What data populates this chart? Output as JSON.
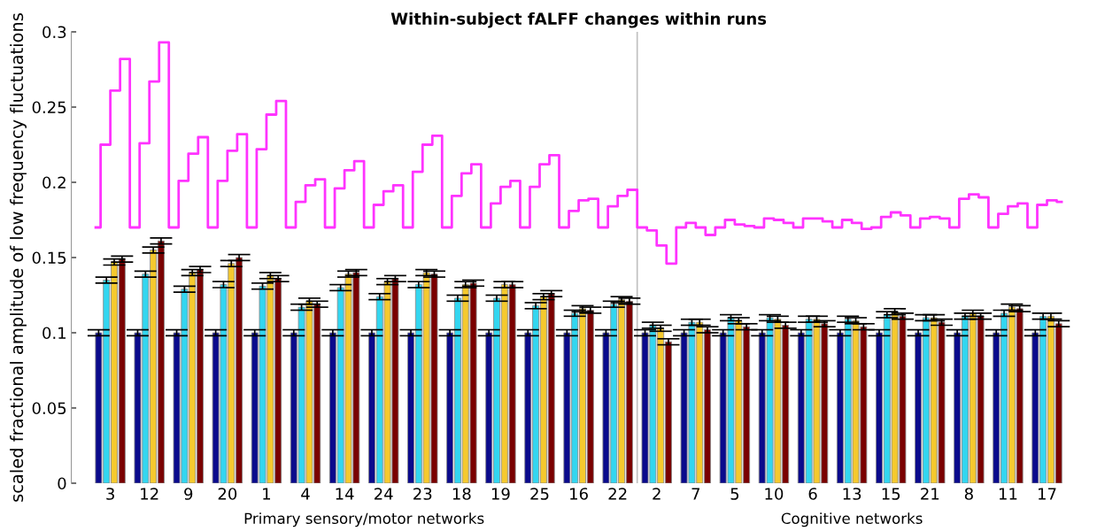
{
  "chart_data": [
    {
      "type": "bar",
      "title": "Within-subject fALFF changes within runs",
      "ylabel": "scaled fractional amplitude of low frequency fluctuations",
      "categories": [
        "3",
        "12",
        "9",
        "20",
        "1",
        "4",
        "14",
        "24",
        "23",
        "18",
        "19",
        "25",
        "16",
        "22",
        "2",
        "7",
        "5",
        "10",
        "6",
        "13",
        "15",
        "21",
        "8",
        "11",
        "17"
      ],
      "ylim": [
        0,
        0.3
      ],
      "yticks": [
        0,
        0.05,
        0.1,
        0.15,
        0.2,
        0.25,
        0.3
      ],
      "series": [
        {
          "color": "#0a0a8c",
          "values": [
            0.1,
            0.1,
            0.1,
            0.1,
            0.1,
            0.1,
            0.1,
            0.1,
            0.1,
            0.1,
            0.1,
            0.1,
            0.1,
            0.1,
            0.1,
            0.1,
            0.1,
            0.1,
            0.1,
            0.1,
            0.1,
            0.1,
            0.1,
            0.1,
            0.1
          ],
          "errors": [
            0.002,
            0.002,
            0.002,
            0.002,
            0.002,
            0.002,
            0.002,
            0.002,
            0.002,
            0.002,
            0.002,
            0.002,
            0.002,
            0.002,
            0.002,
            0.002,
            0.002,
            0.002,
            0.002,
            0.002,
            0.002,
            0.002,
            0.002,
            0.002,
            0.002
          ]
        },
        {
          "color": "#33d6f0",
          "values": [
            0.135,
            0.139,
            0.129,
            0.132,
            0.131,
            0.117,
            0.13,
            0.124,
            0.132,
            0.123,
            0.123,
            0.118,
            0.113,
            0.119,
            0.105,
            0.107,
            0.11,
            0.11,
            0.109,
            0.109,
            0.112,
            0.11,
            0.111,
            0.113,
            0.111
          ],
          "errors": [
            0.002,
            0.002,
            0.002,
            0.002,
            0.002,
            0.002,
            0.002,
            0.002,
            0.002,
            0.002,
            0.002,
            0.002,
            0.002,
            0.002,
            0.002,
            0.002,
            0.002,
            0.002,
            0.002,
            0.002,
            0.002,
            0.002,
            0.002,
            0.002,
            0.002
          ]
        },
        {
          "color": "#f5c92e",
          "values": [
            0.147,
            0.155,
            0.14,
            0.146,
            0.138,
            0.121,
            0.139,
            0.134,
            0.14,
            0.132,
            0.132,
            0.124,
            0.116,
            0.122,
            0.103,
            0.107,
            0.108,
            0.109,
            0.109,
            0.108,
            0.114,
            0.11,
            0.113,
            0.117,
            0.111
          ],
          "errors": [
            0.002,
            0.002,
            0.002,
            0.002,
            0.002,
            0.002,
            0.002,
            0.002,
            0.002,
            0.002,
            0.002,
            0.002,
            0.002,
            0.002,
            0.002,
            0.002,
            0.002,
            0.002,
            0.002,
            0.002,
            0.002,
            0.002,
            0.002,
            0.002,
            0.002
          ]
        },
        {
          "color": "#7a0000",
          "values": [
            0.149,
            0.161,
            0.142,
            0.15,
            0.136,
            0.119,
            0.14,
            0.136,
            0.139,
            0.133,
            0.132,
            0.126,
            0.115,
            0.121,
            0.094,
            0.102,
            0.104,
            0.105,
            0.106,
            0.104,
            0.111,
            0.107,
            0.111,
            0.116,
            0.106
          ],
          "errors": [
            0.002,
            0.002,
            0.002,
            0.002,
            0.002,
            0.002,
            0.002,
            0.002,
            0.002,
            0.002,
            0.002,
            0.002,
            0.002,
            0.002,
            0.002,
            0.002,
            0.002,
            0.002,
            0.002,
            0.002,
            0.002,
            0.002,
            0.002,
            0.002,
            0.002
          ]
        }
      ],
      "annotations": [
        "Primary sensory/motor networks",
        "Cognitive networks"
      ]
    },
    {
      "type": "step",
      "categories": [
        null,
        null,
        null,
        null,
        null,
        null,
        null,
        null,
        null,
        null,
        null,
        null,
        null,
        null,
        null,
        null,
        null,
        null,
        null,
        null,
        null,
        null,
        null,
        null,
        null,
        null,
        null,
        null,
        null,
        null,
        null,
        null,
        null,
        null,
        null,
        null,
        null,
        null,
        null,
        null,
        null,
        null,
        null,
        null,
        null,
        null,
        null,
        null,
        null,
        null,
        null,
        null,
        null,
        null,
        null,
        null,
        null,
        null,
        null,
        null,
        null,
        null,
        null,
        null,
        null,
        null,
        null,
        null,
        null,
        null,
        null,
        null,
        null,
        null,
        null,
        null,
        null,
        null,
        null,
        null,
        null,
        null,
        null,
        null,
        null,
        null,
        null,
        null,
        null,
        null,
        null,
        null,
        null,
        null,
        null,
        null,
        null,
        null,
        null,
        null
      ],
      "ylim": [
        0,
        0.3
      ],
      "tick_labels": false,
      "series": [
        {
          "color": "#ff33ff",
          "values": [
            0.17,
            0.225,
            0.261,
            0.282,
            0.17,
            0.226,
            0.267,
            0.293,
            0.17,
            0.201,
            0.219,
            0.23,
            0.17,
            0.201,
            0.221,
            0.232,
            0.17,
            0.222,
            0.245,
            0.254,
            0.17,
            0.187,
            0.198,
            0.202,
            0.17,
            0.196,
            0.208,
            0.214,
            0.17,
            0.185,
            0.194,
            0.198,
            0.17,
            0.207,
            0.225,
            0.231,
            0.17,
            0.191,
            0.206,
            0.212,
            0.17,
            0.186,
            0.197,
            0.201,
            0.17,
            0.197,
            0.212,
            0.218,
            0.17,
            0.181,
            0.188,
            0.189,
            0.17,
            0.184,
            0.191,
            0.195,
            0.17,
            0.168,
            0.158,
            0.146,
            0.17,
            0.173,
            0.17,
            0.165,
            0.17,
            0.175,
            0.172,
            0.171,
            0.17,
            0.176,
            0.175,
            0.173,
            0.17,
            0.176,
            0.176,
            0.174,
            0.17,
            0.175,
            0.173,
            0.169,
            0.17,
            0.177,
            0.18,
            0.178,
            0.17,
            0.176,
            0.177,
            0.176,
            0.17,
            0.189,
            0.192,
            0.19,
            0.17,
            0.179,
            0.184,
            0.186,
            0.17,
            0.185,
            0.188,
            0.187
          ]
        }
      ]
    }
  ]
}
